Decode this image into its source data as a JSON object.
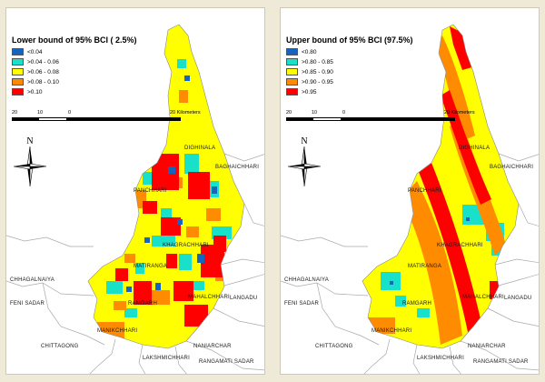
{
  "colors": {
    "c1": "#1565c0",
    "c2": "#19e0c8",
    "c3": "#ffff00",
    "c4": "#ff8c00",
    "c5": "#ff0000",
    "boundary": "#a9a9a9"
  },
  "north_label": "N",
  "scale": {
    "labels": [
      "20",
      "10",
      "0",
      "20 Kilometers"
    ]
  },
  "places": {
    "dighinala": "DIGHINALA",
    "baghaichhari": "BAGHAICHHARI",
    "panchhari": "PANCHHARI",
    "khagrachhari": "KHAGRACHHARI",
    "matiranga": "MATIRANGA",
    "chhagalnaiya": "CHHAGALNAIYA",
    "feni_sadar": "FENI SADAR",
    "mahalchhari": "MAHALCHHARI",
    "langadu": "LANGADU",
    "ramgarh": "RAMGARH",
    "manikchhari": "MANIKCHHARI",
    "chittagong": "CHITTAGONG",
    "naniarchar": "NANIARCHAR",
    "lakshmichhari": "LAKSHMICHHARI",
    "rangamati_sadar": "RANGAMATI SADAR"
  },
  "maps": [
    {
      "legend_title": "Lower bound of 95% BCI ( 2.5%)",
      "classes": [
        "<0.04",
        ">0.04 - 0.06",
        ">0.06 - 0.08",
        ">0.08 - 0.10",
        ">0.10"
      ]
    },
    {
      "legend_title": "Upper bound of 95% BCI (97.5%)",
      "classes": [
        "<0.80",
        ">0.80 - 0.85",
        ">0.85 - 0.90",
        ">0.90 - 0.95",
        ">0.95"
      ]
    }
  ]
}
